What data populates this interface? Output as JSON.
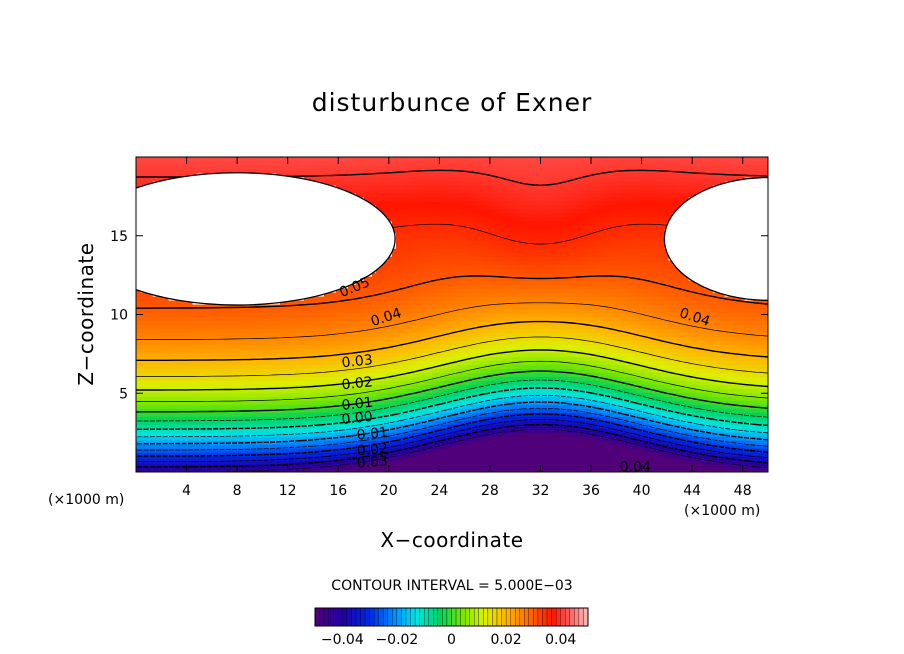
{
  "chart_data": {
    "type": "heatmap",
    "title": "disturbunce of Exner",
    "xlabel": "X−coordinate",
    "ylabel": "Z−coordinate",
    "x_unit_left": "(×1000 m)",
    "x_unit_right": "(×1000 m)",
    "xlim": [
      0,
      50
    ],
    "ylim": [
      0,
      20
    ],
    "x_ticks": [
      4,
      8,
      12,
      16,
      20,
      24,
      28,
      32,
      36,
      40,
      44,
      48
    ],
    "y_ticks": [
      5,
      10,
      15
    ],
    "contour_interval_label": "CONTOUR INTERVAL = 5.000E−03",
    "contour_interval": 0.005,
    "color_range": [
      -0.05,
      0.05
    ],
    "colorbar_ticks": [
      "−0.04",
      "−0.02",
      "0",
      "0.02",
      "0.04"
    ],
    "contour_labels": [
      {
        "text": "0.05",
        "x": 17.3,
        "z": 11.7,
        "angle": -22
      },
      {
        "text": "0.04",
        "x": 19.8,
        "z": 9.8,
        "angle": -18
      },
      {
        "text": "0.04",
        "x": 44.2,
        "z": 9.8,
        "angle": 18
      },
      {
        "text": "0.03",
        "x": 17.5,
        "z": 7.0,
        "angle": -6
      },
      {
        "text": "0.02",
        "x": 17.5,
        "z": 5.6,
        "angle": -6
      },
      {
        "text": "0.01",
        "x": 17.5,
        "z": 4.3,
        "angle": -6
      },
      {
        "text": "0.00",
        "x": 17.5,
        "z": 3.4,
        "angle": -6
      },
      {
        "text": "0.01",
        "x": 18.7,
        "z": 2.4,
        "angle": -6
      },
      {
        "text": "0.02",
        "x": 18.7,
        "z": 1.4,
        "angle": -5
      },
      {
        "text": "0.03",
        "x": 18.7,
        "z": 0.6,
        "angle": -4
      },
      {
        "text": "0.04",
        "x": 39.5,
        "z": 0.3,
        "angle": 0
      }
    ]
  }
}
